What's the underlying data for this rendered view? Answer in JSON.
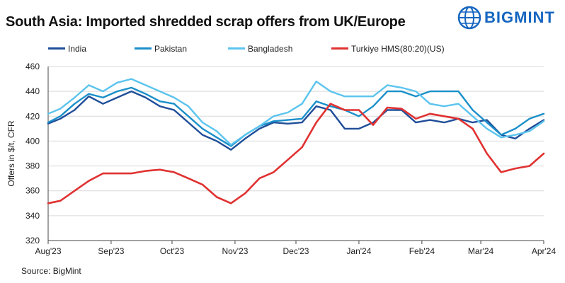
{
  "title": "South Asia: Imported shredded scrap offers from UK/Europe",
  "brand": {
    "name": "BIGMINT",
    "color": "#1565c0"
  },
  "source": "Source: BigMint",
  "chart_data": {
    "type": "line",
    "ylabel": "Offers in $/t, CFR",
    "xlabel": "",
    "ylim": [
      320,
      460
    ],
    "yticks": [
      320,
      340,
      360,
      380,
      400,
      420,
      440,
      460
    ],
    "grid": "horizontal",
    "legend_position": "top",
    "x_tick_labels": [
      "Aug'23",
      "Sep'23",
      "Oct'23",
      "Nov'23",
      "Dec'23",
      "Jan'24",
      "Feb'24",
      "Mar'24",
      "Apr'24"
    ],
    "series": [
      {
        "name": "India",
        "color": "#1f4e99",
        "points": [
          [
            "2023-08-01",
            414
          ],
          [
            "2023-08-07",
            418
          ],
          [
            "2023-08-14",
            425
          ],
          [
            "2023-08-21",
            436
          ],
          [
            "2023-08-28",
            430
          ],
          [
            "2023-09-04",
            435
          ],
          [
            "2023-09-11",
            440
          ],
          [
            "2023-09-18",
            435
          ],
          [
            "2023-09-25",
            428
          ],
          [
            "2023-10-02",
            425
          ],
          [
            "2023-10-09",
            415
          ],
          [
            "2023-10-16",
            405
          ],
          [
            "2023-10-23",
            400
          ],
          [
            "2023-10-30",
            393
          ],
          [
            "2023-11-06",
            402
          ],
          [
            "2023-11-13",
            410
          ],
          [
            "2023-11-20",
            415
          ],
          [
            "2023-11-27",
            414
          ],
          [
            "2023-12-04",
            415
          ],
          [
            "2023-12-11",
            428
          ],
          [
            "2023-12-18",
            425
          ],
          [
            "2023-12-25",
            410
          ],
          [
            "2024-01-01",
            410
          ],
          [
            "2024-01-08",
            415
          ],
          [
            "2024-01-15",
            425
          ],
          [
            "2024-01-22",
            425
          ],
          [
            "2024-01-29",
            415
          ],
          [
            "2024-02-05",
            417
          ],
          [
            "2024-02-12",
            415
          ],
          [
            "2024-02-19",
            418
          ],
          [
            "2024-02-26",
            415
          ],
          [
            "2024-03-04",
            417
          ],
          [
            "2024-03-11",
            405
          ],
          [
            "2024-03-18",
            402
          ],
          [
            "2024-03-25",
            410
          ],
          [
            "2024-04-01",
            417
          ]
        ]
      },
      {
        "name": "Pakistan",
        "color": "#1a8fc9",
        "points": [
          [
            "2023-08-01",
            415
          ],
          [
            "2023-08-07",
            420
          ],
          [
            "2023-08-14",
            430
          ],
          [
            "2023-08-21",
            438
          ],
          [
            "2023-08-28",
            435
          ],
          [
            "2023-09-04",
            440
          ],
          [
            "2023-09-11",
            443
          ],
          [
            "2023-09-18",
            438
          ],
          [
            "2023-09-25",
            432
          ],
          [
            "2023-10-02",
            430
          ],
          [
            "2023-10-09",
            420
          ],
          [
            "2023-10-16",
            410
          ],
          [
            "2023-10-23",
            403
          ],
          [
            "2023-10-30",
            396
          ],
          [
            "2023-11-06",
            405
          ],
          [
            "2023-11-13",
            412
          ],
          [
            "2023-11-20",
            416
          ],
          [
            "2023-11-27",
            417
          ],
          [
            "2023-12-04",
            418
          ],
          [
            "2023-12-11",
            432
          ],
          [
            "2023-12-18",
            428
          ],
          [
            "2023-12-25",
            425
          ],
          [
            "2024-01-01",
            420
          ],
          [
            "2024-01-08",
            428
          ],
          [
            "2024-01-15",
            440
          ],
          [
            "2024-01-22",
            440
          ],
          [
            "2024-01-29",
            436
          ],
          [
            "2024-02-05",
            440
          ],
          [
            "2024-02-12",
            440
          ],
          [
            "2024-02-19",
            440
          ],
          [
            "2024-02-26",
            425
          ],
          [
            "2024-03-04",
            415
          ],
          [
            "2024-03-11",
            405
          ],
          [
            "2024-03-18",
            410
          ],
          [
            "2024-03-25",
            418
          ],
          [
            "2024-04-01",
            422
          ]
        ]
      },
      {
        "name": "Bangladesh",
        "color": "#5bc4ee",
        "points": [
          [
            "2023-08-01",
            422
          ],
          [
            "2023-08-07",
            426
          ],
          [
            "2023-08-14",
            435
          ],
          [
            "2023-08-21",
            445
          ],
          [
            "2023-08-28",
            440
          ],
          [
            "2023-09-04",
            447
          ],
          [
            "2023-09-11",
            450
          ],
          [
            "2023-09-18",
            445
          ],
          [
            "2023-09-25",
            440
          ],
          [
            "2023-10-02",
            435
          ],
          [
            "2023-10-09",
            428
          ],
          [
            "2023-10-16",
            415
          ],
          [
            "2023-10-23",
            408
          ],
          [
            "2023-10-30",
            397
          ],
          [
            "2023-11-06",
            405
          ],
          [
            "2023-11-13",
            412
          ],
          [
            "2023-11-20",
            420
          ],
          [
            "2023-11-27",
            423
          ],
          [
            "2023-12-04",
            430
          ],
          [
            "2023-12-11",
            448
          ],
          [
            "2023-12-18",
            440
          ],
          [
            "2023-12-25",
            436
          ],
          [
            "2024-01-01",
            436
          ],
          [
            "2024-01-08",
            436
          ],
          [
            "2024-01-15",
            445
          ],
          [
            "2024-01-22",
            443
          ],
          [
            "2024-01-29",
            440
          ],
          [
            "2024-02-05",
            430
          ],
          [
            "2024-02-12",
            428
          ],
          [
            "2024-02-19",
            430
          ],
          [
            "2024-02-26",
            420
          ],
          [
            "2024-03-04",
            410
          ],
          [
            "2024-03-11",
            403
          ],
          [
            "2024-03-18",
            405
          ],
          [
            "2024-03-25",
            408
          ],
          [
            "2024-04-01",
            416
          ]
        ]
      },
      {
        "name": "Turkiye HMS(80:20)(US)",
        "color": "#e03131",
        "points": [
          [
            "2023-08-01",
            350
          ],
          [
            "2023-08-07",
            352
          ],
          [
            "2023-08-14",
            360
          ],
          [
            "2023-08-21",
            368
          ],
          [
            "2023-08-28",
            374
          ],
          [
            "2023-09-04",
            374
          ],
          [
            "2023-09-11",
            374
          ],
          [
            "2023-09-18",
            376
          ],
          [
            "2023-09-25",
            377
          ],
          [
            "2023-10-02",
            375
          ],
          [
            "2023-10-09",
            370
          ],
          [
            "2023-10-16",
            365
          ],
          [
            "2023-10-23",
            355
          ],
          [
            "2023-10-30",
            350
          ],
          [
            "2023-11-06",
            358
          ],
          [
            "2023-11-13",
            370
          ],
          [
            "2023-11-20",
            375
          ],
          [
            "2023-11-27",
            385
          ],
          [
            "2023-12-04",
            395
          ],
          [
            "2023-12-11",
            415
          ],
          [
            "2023-12-18",
            430
          ],
          [
            "2023-12-25",
            425
          ],
          [
            "2024-01-01",
            425
          ],
          [
            "2024-01-08",
            413
          ],
          [
            "2024-01-15",
            427
          ],
          [
            "2024-01-22",
            426
          ],
          [
            "2024-01-29",
            418
          ],
          [
            "2024-02-05",
            422
          ],
          [
            "2024-02-12",
            420
          ],
          [
            "2024-02-19",
            418
          ],
          [
            "2024-02-26",
            410
          ],
          [
            "2024-03-04",
            390
          ],
          [
            "2024-03-11",
            375
          ],
          [
            "2024-03-18",
            378
          ],
          [
            "2024-03-25",
            380
          ],
          [
            "2024-04-01",
            390
          ]
        ]
      }
    ]
  }
}
